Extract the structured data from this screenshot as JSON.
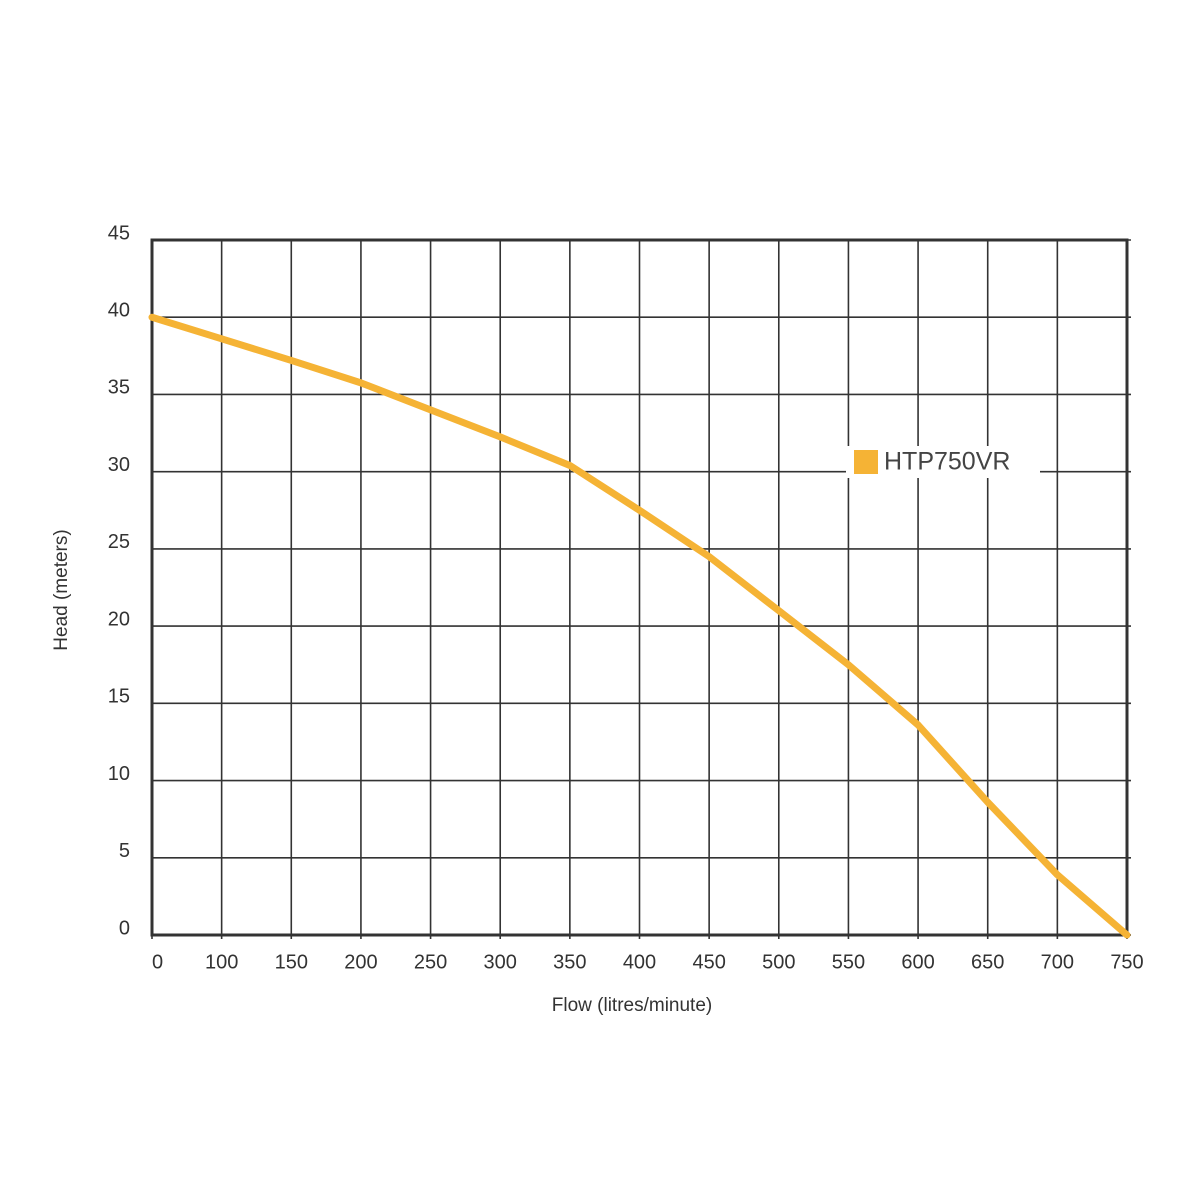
{
  "chart_data": {
    "type": "line",
    "x_label": "Flow (litres/minute)",
    "y_label": "Head (meters)",
    "x": [
      0,
      100,
      150,
      200,
      250,
      300,
      350,
      400,
      450,
      500,
      550,
      600,
      650,
      700,
      750
    ],
    "series": [
      {
        "name": "HTP750VR",
        "color": "#f5b335",
        "values": [
          40,
          38.6,
          37.2,
          35.75,
          34,
          32.25,
          30.4,
          27.5,
          24.5,
          21,
          17.5,
          13.6,
          8.6,
          3.9,
          0
        ]
      }
    ],
    "xlim": [
      0,
      750
    ],
    "xticks": [
      0,
      100,
      150,
      200,
      250,
      300,
      350,
      400,
      450,
      500,
      550,
      600,
      650,
      700,
      750
    ],
    "ylim": [
      0,
      45
    ],
    "yticks": [
      0,
      5,
      10,
      15,
      20,
      25,
      30,
      35,
      40,
      45
    ],
    "grid": true
  }
}
